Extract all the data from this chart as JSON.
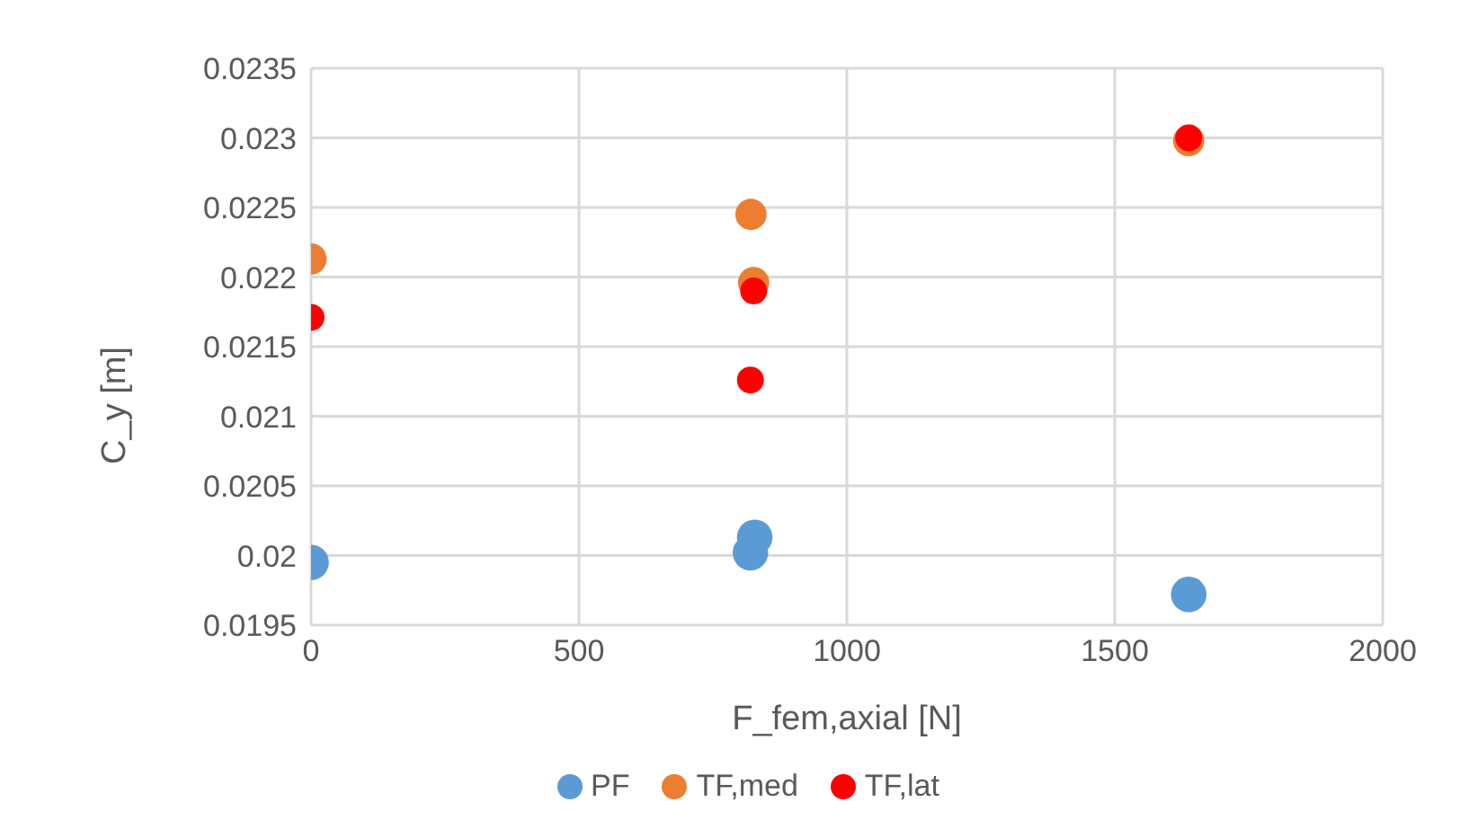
{
  "chart_data": {
    "type": "scatter",
    "xlabel": "F_fem,axial [N]",
    "ylabel": "C_y [m]",
    "xlim": [
      0,
      2000
    ],
    "xticks": [
      0,
      500,
      1000,
      1500,
      2000
    ],
    "ylim": [
      0.0195,
      0.0235
    ],
    "yticks": [
      0.0195,
      0.02,
      0.0205,
      0.021,
      0.0215,
      0.022,
      0.0225,
      0.023,
      0.0235
    ],
    "grid": true,
    "legend": "bottom",
    "marker": "circle",
    "series": [
      {
        "name": "PF",
        "color": "#5b9bd5",
        "x": [
          0,
          820,
          828,
          1638
        ],
        "values": [
          0.01995,
          0.02002,
          0.02013,
          0.01972
        ]
      },
      {
        "name": "TF,med",
        "color": "#ed7d31",
        "x": [
          0,
          821,
          826,
          1638
        ],
        "values": [
          0.02213,
          0.02245,
          0.02196,
          0.02298
        ]
      },
      {
        "name": "TF,lat",
        "color": "#ff0000",
        "x": [
          0,
          820,
          826,
          1638
        ],
        "values": [
          0.02171,
          0.02126,
          0.0219,
          0.023
        ]
      }
    ]
  }
}
